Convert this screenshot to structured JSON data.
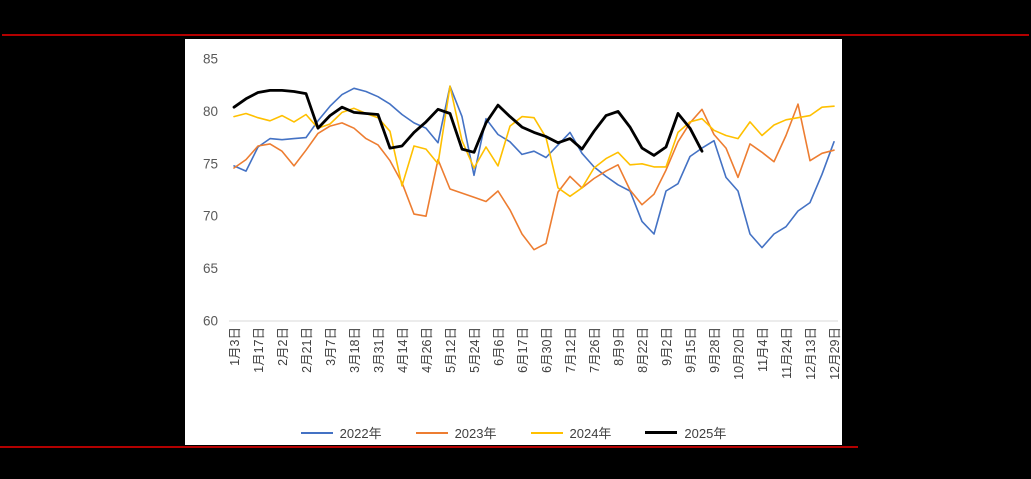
{
  "page": {
    "background": "#000000",
    "rule_color": "#b30000",
    "panel_background": "#ffffff"
  },
  "chart_data": {
    "type": "line",
    "title": "",
    "xlabel": "",
    "ylabel": "",
    "grid": false,
    "legend_position": "bottom",
    "x_resolution": "two points per labeled category (half-tick weekly data)",
    "categories": [
      "1月3日",
      "1月17日",
      "2月2日",
      "2月21日",
      "3月7日",
      "3月18日",
      "3月31日",
      "4月14日",
      "4月26日",
      "5月12日",
      "5月24日",
      "6月6日",
      "6月17日",
      "6月30日",
      "7月12日",
      "7月26日",
      "8月9日",
      "8月22日",
      "9月2日",
      "9月15日",
      "9月28日",
      "10月20日",
      "11月4日",
      "11月24日",
      "12月13日",
      "12月29日"
    ],
    "y_axis": {
      "min": 60,
      "max": 85,
      "step": 5,
      "ticks": [
        85,
        80,
        75,
        70,
        65,
        60
      ],
      "label_color": "#595959",
      "axis_line_color": "#d9d9d9"
    },
    "x_axis": {
      "label_color": "#404040",
      "rotation": -90
    },
    "series": [
      {
        "name": "2022年",
        "color": "#4472c4",
        "width": 1.6,
        "values": [
          74.8,
          74.3,
          76.6,
          77.4,
          77.3,
          77.4,
          77.5,
          79.1,
          80.5,
          81.6,
          82.2,
          81.9,
          81.4,
          80.7,
          79.7,
          78.9,
          78.4,
          77.0,
          82.4,
          79.5,
          73.9,
          79.3,
          77.8,
          77.1,
          75.9,
          76.2,
          75.6,
          76.8,
          78.0,
          76.0,
          74.7,
          73.8,
          73.0,
          72.4,
          69.5,
          68.3,
          72.4,
          73.1,
          75.7,
          76.5,
          77.2,
          73.7,
          72.4,
          68.3,
          67.0,
          68.3,
          69.0,
          70.5,
          71.3,
          74.0,
          77.1
        ]
      },
      {
        "name": "2023年",
        "color": "#ed7d31",
        "width": 1.6,
        "values": [
          74.6,
          75.4,
          76.7,
          76.9,
          76.2,
          74.8,
          76.3,
          77.9,
          78.6,
          78.9,
          78.4,
          77.4,
          76.8,
          75.3,
          73.2,
          70.2,
          70.0,
          75.4,
          72.6,
          72.2,
          71.8,
          71.4,
          72.4,
          70.6,
          68.3,
          66.8,
          67.4,
          72.3,
          73.8,
          72.7,
          73.6,
          74.3,
          74.9,
          72.5,
          71.1,
          72.1,
          74.4,
          77.1,
          78.9,
          80.2,
          77.8,
          76.5,
          73.7,
          76.9,
          76.1,
          75.2,
          77.7,
          80.7,
          75.3,
          76.0,
          76.3
        ]
      },
      {
        "name": "2024年",
        "color": "#ffc000",
        "width": 1.6,
        "values": [
          79.5,
          79.8,
          79.4,
          79.1,
          79.6,
          79.0,
          79.7,
          78.4,
          78.8,
          79.9,
          80.3,
          79.8,
          79.4,
          78.1,
          72.9,
          76.7,
          76.4,
          75.0,
          82.4,
          77.2,
          74.6,
          76.6,
          74.8,
          78.6,
          79.5,
          79.4,
          77.5,
          72.7,
          71.9,
          72.7,
          74.6,
          75.5,
          76.1,
          74.9,
          75.0,
          74.7,
          74.7,
          78.0,
          79.0,
          79.3,
          78.2,
          77.7,
          77.4,
          79.0,
          77.7,
          78.7,
          79.2,
          79.4,
          79.6,
          80.4,
          80.5
        ]
      },
      {
        "name": "2025年",
        "color": "#000000",
        "width": 2.8,
        "values": [
          80.4,
          81.2,
          81.8,
          82.0,
          82.0,
          81.9,
          81.7,
          78.4,
          79.6,
          80.4,
          79.9,
          79.8,
          79.7,
          76.5,
          76.7,
          78.0,
          79.0,
          80.2,
          79.8,
          76.4,
          76.1,
          78.9,
          80.6,
          79.5,
          78.5,
          78.0,
          77.6,
          77.0,
          77.4,
          76.4,
          78.1,
          79.6,
          80.0,
          78.5,
          76.5,
          75.8,
          76.6,
          79.8,
          78.4,
          76.2,
          null,
          null,
          null,
          null,
          null,
          null,
          null,
          null,
          null,
          null,
          null
        ]
      }
    ],
    "legend": [
      "2022年",
      "2023年",
      "2024年",
      "2025年"
    ]
  }
}
